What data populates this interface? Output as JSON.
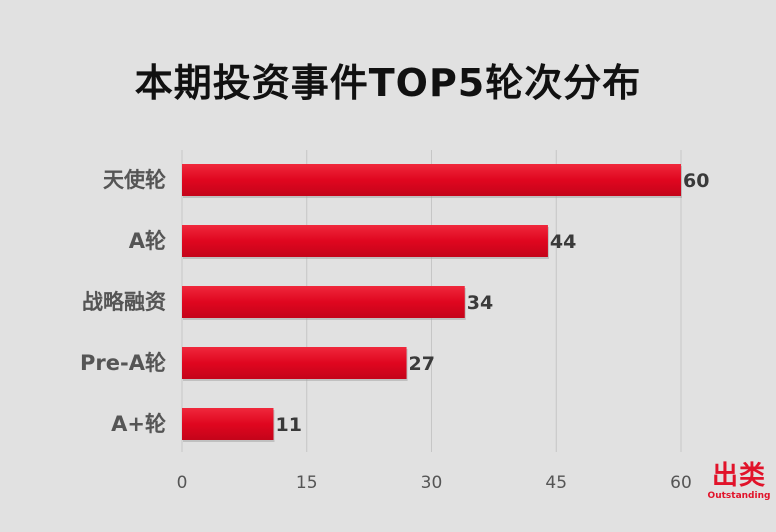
{
  "chart_data": {
    "type": "bar",
    "orientation": "horizontal",
    "title": "本期投资事件TOP5轮次分布",
    "categories": [
      "天使轮",
      "A轮",
      "战略融资",
      "Pre-A轮",
      "A+轮"
    ],
    "values": [
      60,
      44,
      34,
      27,
      11
    ],
    "xlim": [
      0,
      60
    ],
    "xticks": [
      0,
      15,
      30,
      45,
      60
    ],
    "grid": "vertical",
    "bar_color": "#e0061f",
    "data_labels": true
  },
  "brand": {
    "name_cn": "出类",
    "name_en": "Outstanding",
    "color": "#e1132a"
  }
}
